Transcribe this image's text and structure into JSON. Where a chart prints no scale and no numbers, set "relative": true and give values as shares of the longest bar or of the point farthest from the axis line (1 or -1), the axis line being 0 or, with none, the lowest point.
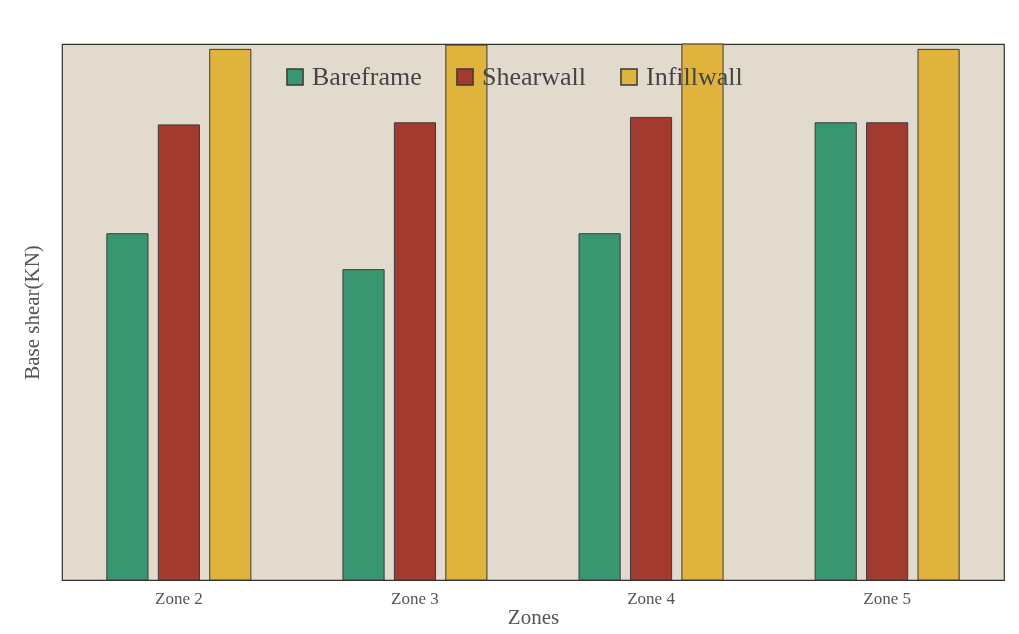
{
  "chart_data": {
    "type": "bar",
    "xlabel": "Zones",
    "ylabel": "Base shear(KN)",
    "relative": true,
    "legend": "top",
    "categories": [
      "Zone 2",
      "Zone 3",
      "Zone 4",
      "Zone 5"
    ],
    "series": [
      {
        "name": "Bareframe",
        "color": "#3a9670",
        "values": [
          0.646,
          0.579,
          0.646,
          0.853
        ]
      },
      {
        "name": "Shearwall",
        "color": "#a33a30",
        "values": [
          0.849,
          0.853,
          0.863,
          0.853
        ]
      },
      {
        "name": "Infillwall",
        "color": "#e0b33c",
        "values": [
          0.99,
          0.998,
          1,
          0.99
        ]
      }
    ]
  }
}
